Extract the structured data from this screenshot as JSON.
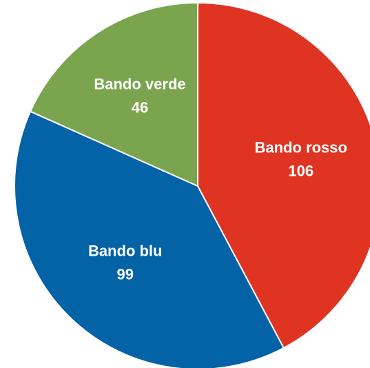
{
  "chart_data": {
    "type": "pie",
    "categories": [
      "Bando rosso",
      "Bando blu",
      "Bando verde"
    ],
    "values": [
      106,
      99,
      46
    ],
    "colors": [
      "#e03423",
      "#0462a6",
      "#7ba44f"
    ]
  }
}
